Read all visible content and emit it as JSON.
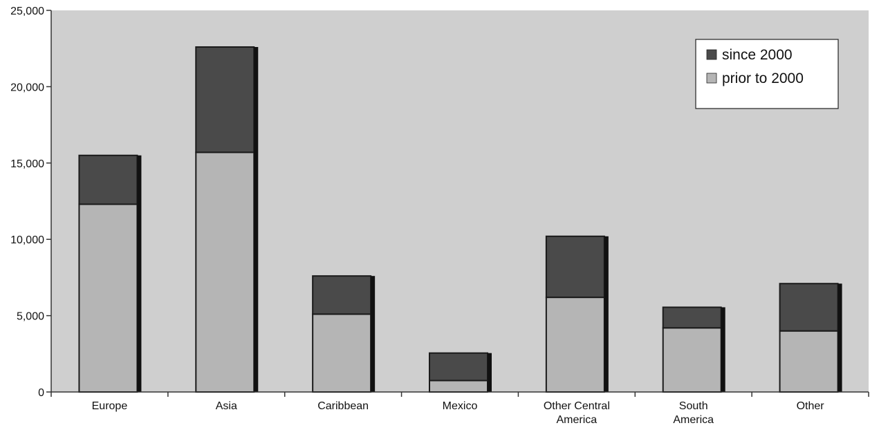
{
  "chart_data": {
    "type": "bar",
    "stacked": true,
    "title": "",
    "xlabel": "",
    "ylabel": "",
    "ylim": [
      0,
      25000
    ],
    "yticks": [
      0,
      5000,
      10000,
      15000,
      20000,
      25000
    ],
    "ytick_labels": [
      "0",
      "5,000",
      "10,000",
      "15,000",
      "20,000",
      "25,000"
    ],
    "grid": false,
    "legend_position": "top-right",
    "categories": [
      [
        "Europe"
      ],
      [
        "Asia"
      ],
      [
        "Caribbean"
      ],
      [
        "Mexico"
      ],
      [
        "Other Central",
        "America"
      ],
      [
        "South",
        "America"
      ],
      [
        "Other"
      ]
    ],
    "series": [
      {
        "name": "prior to 2000",
        "values": [
          12300,
          15700,
          5100,
          750,
          6200,
          4200,
          4000
        ],
        "color": "#b5b5b5"
      },
      {
        "name": "since 2000",
        "values": [
          3200,
          6900,
          2500,
          1800,
          4000,
          1350,
          3100
        ],
        "color": "#4a4a4a"
      }
    ],
    "legend_order": [
      1,
      0
    ],
    "colors": {
      "plot_background": "#cfcfcf",
      "bar_outline": "#1a1a1a",
      "axis": "#333333"
    }
  }
}
